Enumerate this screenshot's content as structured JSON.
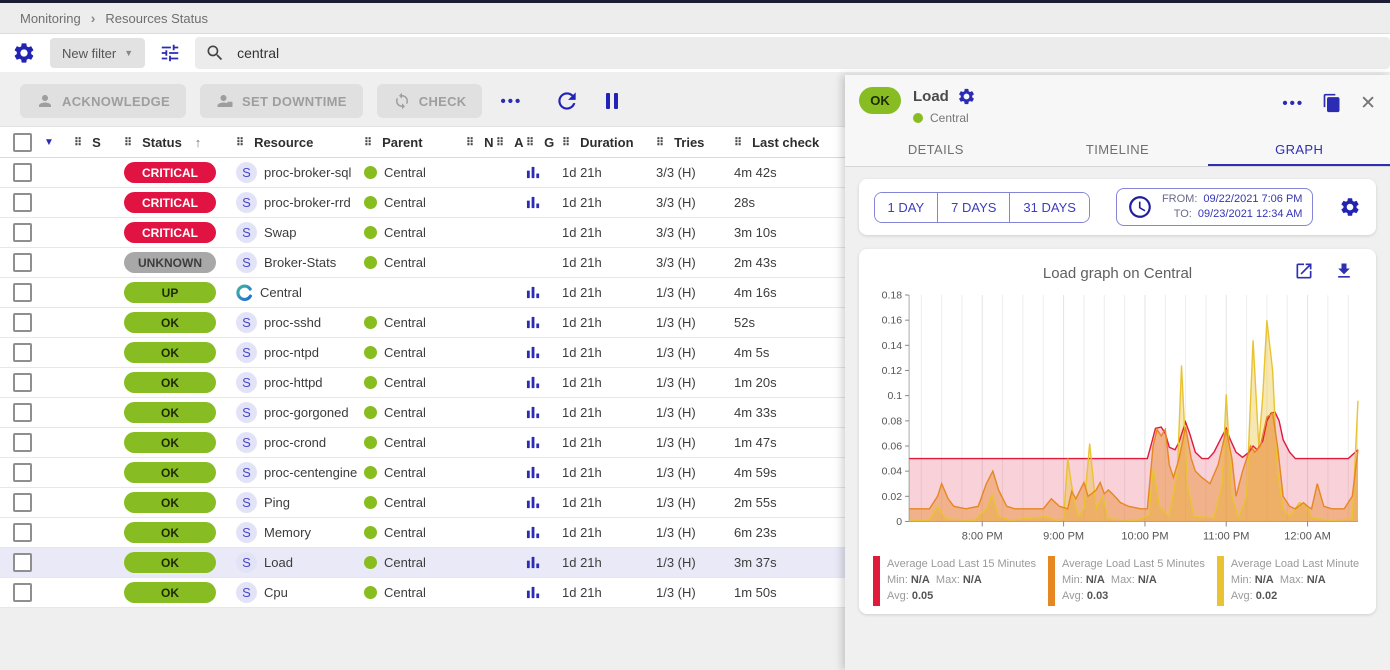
{
  "breadcrumb": {
    "items": [
      "Monitoring",
      "Resources Status"
    ]
  },
  "icons": {
    "crumb_sep": "›",
    "caret_down": "▼",
    "sort_asc": "↑",
    "drag_handle": "⠿",
    "more_dots": "•••",
    "close": "✕"
  },
  "colors": {
    "accent_blue": "#2b2bb4",
    "critical_bg": "#e01343",
    "critical_fg": "#ffffff",
    "unknown_bg": "#a8a8a8",
    "unknown_fg": "#3d3d3d",
    "ok_bg": "#87bd23",
    "ok_fg": "#1f2a00",
    "up_bg": "#87bd23",
    "up_fg": "#1f2a00",
    "selected_row_bg": "#e9e9f7"
  },
  "filter_bar": {
    "new_filter_label": "New filter",
    "search_value": "central"
  },
  "toolbar": {
    "acknowledge_label": "ACKNOWLEDGE",
    "set_downtime_label": "SET DOWNTIME",
    "check_label": "CHECK"
  },
  "table": {
    "columns": [
      {
        "label": "S"
      },
      {
        "label": "Status",
        "sort": "asc"
      },
      {
        "label": "Resource"
      },
      {
        "label": "Parent"
      },
      {
        "label": "N"
      },
      {
        "label": "A"
      },
      {
        "label": "G"
      },
      {
        "label": "Duration"
      },
      {
        "label": "Tries"
      },
      {
        "label": "Last check"
      }
    ],
    "rows": [
      {
        "status": "CRITICAL",
        "type": "service",
        "resource": "proc-broker-sql",
        "parent": "Central",
        "graph": true,
        "duration": "1d 21h",
        "tries": "3/3 (H)",
        "last_check": "4m 42s",
        "selected": false
      },
      {
        "status": "CRITICAL",
        "type": "service",
        "resource": "proc-broker-rrd",
        "parent": "Central",
        "graph": true,
        "duration": "1d 21h",
        "tries": "3/3 (H)",
        "last_check": "28s",
        "selected": false
      },
      {
        "status": "CRITICAL",
        "type": "service",
        "resource": "Swap",
        "parent": "Central",
        "graph": false,
        "duration": "1d 21h",
        "tries": "3/3 (H)",
        "last_check": "3m 10s",
        "selected": false
      },
      {
        "status": "UNKNOWN",
        "type": "service",
        "resource": "Broker-Stats",
        "parent": "Central",
        "graph": false,
        "duration": "1d 21h",
        "tries": "3/3 (H)",
        "last_check": "2m 43s",
        "selected": false
      },
      {
        "status": "UP",
        "type": "host",
        "resource": "Central",
        "parent": "",
        "graph": true,
        "duration": "1d 21h",
        "tries": "1/3 (H)",
        "last_check": "4m 16s",
        "selected": false
      },
      {
        "status": "OK",
        "type": "service",
        "resource": "proc-sshd",
        "parent": "Central",
        "graph": true,
        "duration": "1d 21h",
        "tries": "1/3 (H)",
        "last_check": "52s",
        "selected": false
      },
      {
        "status": "OK",
        "type": "service",
        "resource": "proc-ntpd",
        "parent": "Central",
        "graph": true,
        "duration": "1d 21h",
        "tries": "1/3 (H)",
        "last_check": "4m 5s",
        "selected": false
      },
      {
        "status": "OK",
        "type": "service",
        "resource": "proc-httpd",
        "parent": "Central",
        "graph": true,
        "duration": "1d 21h",
        "tries": "1/3 (H)",
        "last_check": "1m 20s",
        "selected": false
      },
      {
        "status": "OK",
        "type": "service",
        "resource": "proc-gorgoned",
        "parent": "Central",
        "graph": true,
        "duration": "1d 21h",
        "tries": "1/3 (H)",
        "last_check": "4m 33s",
        "selected": false
      },
      {
        "status": "OK",
        "type": "service",
        "resource": "proc-crond",
        "parent": "Central",
        "graph": true,
        "duration": "1d 21h",
        "tries": "1/3 (H)",
        "last_check": "1m 47s",
        "selected": false
      },
      {
        "status": "OK",
        "type": "service",
        "resource": "proc-centengine",
        "parent": "Central",
        "graph": true,
        "duration": "1d 21h",
        "tries": "1/3 (H)",
        "last_check": "4m 59s",
        "selected": false
      },
      {
        "status": "OK",
        "type": "service",
        "resource": "Ping",
        "parent": "Central",
        "graph": true,
        "duration": "1d 21h",
        "tries": "1/3 (H)",
        "last_check": "2m 55s",
        "selected": false
      },
      {
        "status": "OK",
        "type": "service",
        "resource": "Memory",
        "parent": "Central",
        "graph": true,
        "duration": "1d 21h",
        "tries": "1/3 (H)",
        "last_check": "6m 23s",
        "selected": false
      },
      {
        "status": "OK",
        "type": "service",
        "resource": "Load",
        "parent": "Central",
        "graph": true,
        "duration": "1d 21h",
        "tries": "1/3 (H)",
        "last_check": "3m 37s",
        "selected": true
      },
      {
        "status": "OK",
        "type": "service",
        "resource": "Cpu",
        "parent": "Central",
        "graph": true,
        "duration": "1d 21h",
        "tries": "1/3 (H)",
        "last_check": "1m 50s",
        "selected": false
      }
    ]
  },
  "panel": {
    "status": "OK",
    "title": "Load",
    "host": "Central",
    "tabs": [
      {
        "label": "DETAILS",
        "active": false
      },
      {
        "label": "TIMELINE",
        "active": false
      },
      {
        "label": "GRAPH",
        "active": true
      }
    ],
    "range_buttons": [
      "1 DAY",
      "7 DAYS",
      "31 DAYS"
    ],
    "from_label": "FROM:",
    "from_value": "09/22/2021 7:06 PM",
    "to_label": "TO:",
    "to_value": "09/23/2021 12:34 AM",
    "graph_title": "Load graph on Central",
    "legend": [
      {
        "name": "Average Load Last 15 Minutes",
        "color": "#e11a3c",
        "min": "N/A",
        "max": "N/A",
        "avg": "0.05"
      },
      {
        "name": "Average Load Last 5 Minutes",
        "color": "#e68722",
        "min": "N/A",
        "max": "N/A",
        "avg": "0.03"
      },
      {
        "name": "Average Load Last Minute",
        "color": "#e9c331",
        "min": "N/A",
        "max": "N/A",
        "avg": "0.02"
      }
    ]
  },
  "chart_data": {
    "type": "area",
    "title": "Load graph on Central",
    "xlabel": "",
    "ylabel": "",
    "grid": "vertical-15min",
    "legend_position": "bottom",
    "x_axis": {
      "range_hours": [
        19.1,
        24.62
      ],
      "tick_hours": [
        20,
        21,
        22,
        23,
        24
      ],
      "tick_labels": [
        "8:00 PM",
        "9:00 PM",
        "10:00 PM",
        "11:00 PM",
        "12:00 AM"
      ]
    },
    "y_axis": {
      "range": [
        0,
        0.18
      ],
      "ticks": [
        0,
        0.02,
        0.04,
        0.06,
        0.08,
        0.1,
        0.12,
        0.14,
        0.16,
        0.18
      ]
    },
    "series": [
      {
        "name": "Average Load Last 15 Minutes",
        "color": "#e11a3c",
        "fill_opacity": 0.2,
        "avg": 0.05,
        "points": [
          [
            19.1,
            0.05
          ],
          [
            22.03,
            0.05
          ],
          [
            22.08,
            0.062
          ],
          [
            22.13,
            0.074
          ],
          [
            22.2,
            0.075
          ],
          [
            22.25,
            0.07
          ],
          [
            22.3,
            0.059
          ],
          [
            22.37,
            0.057
          ],
          [
            22.42,
            0.063
          ],
          [
            22.5,
            0.079
          ],
          [
            22.55,
            0.07
          ],
          [
            22.62,
            0.055
          ],
          [
            22.7,
            0.05
          ],
          [
            22.78,
            0.05
          ],
          [
            22.85,
            0.055
          ],
          [
            22.95,
            0.068
          ],
          [
            23.0,
            0.074
          ],
          [
            23.05,
            0.065
          ],
          [
            23.12,
            0.055
          ],
          [
            23.2,
            0.051
          ],
          [
            23.28,
            0.055
          ],
          [
            23.33,
            0.06
          ],
          [
            23.38,
            0.057
          ],
          [
            23.45,
            0.064
          ],
          [
            23.5,
            0.08
          ],
          [
            23.55,
            0.086
          ],
          [
            23.6,
            0.087
          ],
          [
            23.65,
            0.08
          ],
          [
            23.7,
            0.065
          ],
          [
            23.78,
            0.055
          ],
          [
            23.85,
            0.05
          ],
          [
            24.5,
            0.05
          ],
          [
            24.62,
            0.057
          ]
        ]
      },
      {
        "name": "Average Load Last 5 Minutes",
        "color": "#e68722",
        "fill_opacity": 0.42,
        "avg": 0.03,
        "points": [
          [
            19.1,
            0.01
          ],
          [
            19.35,
            0.01
          ],
          [
            19.45,
            0.02
          ],
          [
            19.5,
            0.03
          ],
          [
            19.58,
            0.018
          ],
          [
            19.65,
            0.012
          ],
          [
            19.8,
            0.01
          ],
          [
            19.95,
            0.012
          ],
          [
            20.05,
            0.03
          ],
          [
            20.13,
            0.04
          ],
          [
            20.2,
            0.025
          ],
          [
            20.3,
            0.012
          ],
          [
            20.4,
            0.01
          ],
          [
            20.75,
            0.01
          ],
          [
            20.85,
            0.018
          ],
          [
            20.95,
            0.012
          ],
          [
            21.05,
            0.01
          ],
          [
            21.1,
            0.024
          ],
          [
            21.15,
            0.018
          ],
          [
            21.25,
            0.031
          ],
          [
            21.3,
            0.02
          ],
          [
            21.4,
            0.025
          ],
          [
            21.45,
            0.031
          ],
          [
            21.5,
            0.022
          ],
          [
            21.55,
            0.025
          ],
          [
            21.6,
            0.022
          ],
          [
            21.7,
            0.015
          ],
          [
            21.8,
            0.012
          ],
          [
            21.95,
            0.01
          ],
          [
            22.03,
            0.01
          ],
          [
            22.1,
            0.06
          ],
          [
            22.15,
            0.073
          ],
          [
            22.2,
            0.068
          ],
          [
            22.25,
            0.073
          ],
          [
            22.3,
            0.045
          ],
          [
            22.35,
            0.035
          ],
          [
            22.42,
            0.05
          ],
          [
            22.5,
            0.075
          ],
          [
            22.57,
            0.05
          ],
          [
            22.62,
            0.04
          ],
          [
            22.7,
            0.035
          ],
          [
            22.8,
            0.03
          ],
          [
            22.9,
            0.045
          ],
          [
            23.0,
            0.073
          ],
          [
            23.07,
            0.05
          ],
          [
            23.12,
            0.02
          ],
          [
            23.2,
            0.04
          ],
          [
            23.3,
            0.06
          ],
          [
            23.35,
            0.055
          ],
          [
            23.42,
            0.06
          ],
          [
            23.5,
            0.083
          ],
          [
            23.57,
            0.086
          ],
          [
            23.63,
            0.06
          ],
          [
            23.7,
            0.02
          ],
          [
            23.78,
            0.012
          ],
          [
            23.85,
            0.01
          ],
          [
            23.95,
            0.015
          ],
          [
            24.0,
            0.012
          ],
          [
            24.05,
            0.01
          ],
          [
            24.12,
            0.03
          ],
          [
            24.2,
            0.012
          ],
          [
            24.3,
            0.01
          ],
          [
            24.45,
            0.01
          ],
          [
            24.55,
            0.02
          ],
          [
            24.62,
            0.057
          ]
        ]
      },
      {
        "name": "Average Load Last Minute",
        "color": "#e9c331",
        "fill_opacity": 0.38,
        "avg": 0.02,
        "points": [
          [
            19.1,
            0.001
          ],
          [
            19.35,
            0.001
          ],
          [
            19.45,
            0.012
          ],
          [
            19.55,
            0.002
          ],
          [
            19.9,
            0.001
          ],
          [
            20.05,
            0.01
          ],
          [
            20.12,
            0.021
          ],
          [
            20.2,
            0.004
          ],
          [
            20.35,
            0.001
          ],
          [
            20.8,
            0.004
          ],
          [
            20.9,
            0.001
          ],
          [
            21.0,
            0.002
          ],
          [
            21.05,
            0.05
          ],
          [
            21.12,
            0.02
          ],
          [
            21.18,
            0.004
          ],
          [
            21.25,
            0.01
          ],
          [
            21.32,
            0.062
          ],
          [
            21.4,
            0.01
          ],
          [
            21.48,
            0.02
          ],
          [
            21.55,
            0.002
          ],
          [
            21.9,
            0.001
          ],
          [
            22.05,
            0.005
          ],
          [
            22.1,
            0.042
          ],
          [
            22.18,
            0.012
          ],
          [
            22.3,
            0.004
          ],
          [
            22.4,
            0.04
          ],
          [
            22.45,
            0.124
          ],
          [
            22.52,
            0.03
          ],
          [
            22.6,
            0.004
          ],
          [
            22.85,
            0.003
          ],
          [
            22.95,
            0.03
          ],
          [
            23.0,
            0.101
          ],
          [
            23.07,
            0.02
          ],
          [
            23.15,
            0.003
          ],
          [
            23.25,
            0.02
          ],
          [
            23.33,
            0.144
          ],
          [
            23.4,
            0.06
          ],
          [
            23.45,
            0.1
          ],
          [
            23.5,
            0.16
          ],
          [
            23.57,
            0.12
          ],
          [
            23.63,
            0.04
          ],
          [
            23.7,
            0.01
          ],
          [
            23.78,
            0.004
          ],
          [
            23.9,
            0.015
          ],
          [
            24.0,
            0.012
          ],
          [
            24.05,
            0.003
          ],
          [
            24.15,
            0.002
          ],
          [
            24.3,
            0.001
          ],
          [
            24.55,
            0.002
          ],
          [
            24.62,
            0.096
          ]
        ]
      }
    ]
  }
}
